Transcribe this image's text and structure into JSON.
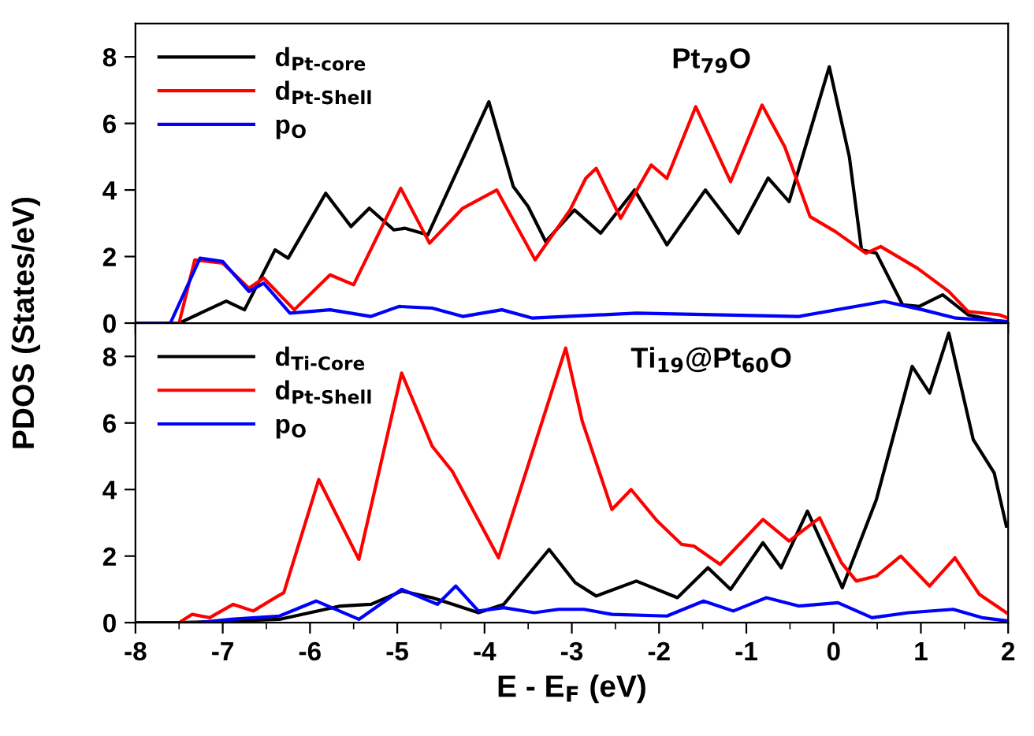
{
  "chart_data": [
    {
      "type": "line",
      "annotations": [
        "Pt$_{79}$O"
      ],
      "xlim": [
        -8,
        2
      ],
      "ylim": [
        0,
        9
      ],
      "xticks": [
        -8,
        -7,
        -6,
        -5,
        -4,
        -3,
        -2,
        -1,
        0,
        1,
        2
      ],
      "yticks": [
        0,
        2,
        4,
        6,
        8
      ],
      "tick_labels": "y",
      "legend": "top left",
      "grid": false,
      "series": [
        {
          "name": "d$_{Pt-core}$",
          "color": "#000000",
          "x": [
            -8,
            -7.5,
            -6.96,
            -6.75,
            -6.4,
            -6.25,
            -5.82,
            -5.53,
            -5.32,
            -5.04,
            -4.91,
            -4.65,
            -3.95,
            -3.67,
            -3.5,
            -3.3,
            -2.97,
            -2.67,
            -2.28,
            -1.91,
            -1.47,
            -1.09,
            -0.75,
            -0.51,
            -0.05,
            0.18,
            0.32,
            0.49,
            0.79,
            0.98,
            1.25,
            1.54,
            2
          ],
          "values": [
            0,
            0,
            0.66,
            0.4,
            2.2,
            1.95,
            3.9,
            2.9,
            3.45,
            2.8,
            2.85,
            2.65,
            6.65,
            4.1,
            3.5,
            2.45,
            3.4,
            2.7,
            4.0,
            2.35,
            4.0,
            2.7,
            4.36,
            3.65,
            7.7,
            5.0,
            2.2,
            2.1,
            0.55,
            0.5,
            0.85,
            0.25,
            0
          ]
        },
        {
          "name": "d$_{Pt-Shell}$",
          "color": "#ff0000",
          "x": [
            -8,
            -7.5,
            -7.32,
            -7.0,
            -6.7,
            -6.53,
            -6.18,
            -5.77,
            -5.5,
            -4.96,
            -4.63,
            -4.25,
            -3.86,
            -3.42,
            -3.02,
            -2.84,
            -2.72,
            -2.44,
            -2.09,
            -1.91,
            -1.58,
            -1.18,
            -0.82,
            -0.56,
            -0.27,
            0.02,
            0.37,
            0.54,
            0.96,
            1.32,
            1.54,
            1.9,
            2
          ],
          "values": [
            0,
            0,
            1.9,
            1.8,
            1.05,
            1.35,
            0.4,
            1.45,
            1.15,
            4.05,
            2.4,
            3.45,
            4.0,
            1.9,
            3.4,
            4.35,
            4.65,
            3.15,
            4.75,
            4.35,
            6.5,
            4.25,
            6.55,
            5.3,
            3.2,
            2.75,
            2.1,
            2.3,
            1.65,
            0.95,
            0.35,
            0.25,
            0.15
          ]
        },
        {
          "name": "p$_{O}$",
          "color": "#0000ff",
          "x": [
            -8,
            -7.6,
            -7.26,
            -7.0,
            -6.7,
            -6.53,
            -6.23,
            -5.77,
            -5.3,
            -4.98,
            -4.6,
            -4.25,
            -3.8,
            -3.45,
            -2.26,
            -0.4,
            0.58,
            1.02,
            1.4,
            2.0
          ],
          "values": [
            0,
            0,
            1.95,
            1.85,
            0.95,
            1.2,
            0.3,
            0.4,
            0.2,
            0.5,
            0.45,
            0.2,
            0.4,
            0.15,
            0.3,
            0.2,
            0.65,
            0.4,
            0.15,
            0.05
          ]
        }
      ]
    },
    {
      "type": "line",
      "annotations": [
        "Ti$_{19}$@Pt$_{60}$O"
      ],
      "xlabel": "E - E$_{F}$ (eV)",
      "ylabel": "PDOS (States/eV)",
      "xlim": [
        -8,
        2
      ],
      "ylim": [
        0,
        9
      ],
      "xticks": [
        -8,
        -7,
        -6,
        -5,
        -4,
        -3,
        -2,
        -1,
        0,
        1,
        2
      ],
      "yticks": [
        0,
        2,
        4,
        6,
        8
      ],
      "legend": "top left",
      "grid": false,
      "series": [
        {
          "name": "d$_{Ti-Core}$",
          "color": "#000000",
          "x": [
            -8,
            -7.5,
            -6.35,
            -5.65,
            -5.3,
            -4.95,
            -4.6,
            -4.36,
            -4.07,
            -3.78,
            -3.26,
            -2.96,
            -2.72,
            -2.26,
            -1.79,
            -1.44,
            -1.18,
            -0.81,
            -0.6,
            -0.3,
            0.1,
            0.49,
            0.9,
            1.1,
            1.32,
            1.6,
            1.84,
            1.98
          ],
          "values": [
            0,
            0,
            0.1,
            0.5,
            0.55,
            0.95,
            0.75,
            0.55,
            0.3,
            0.55,
            2.2,
            1.2,
            0.8,
            1.25,
            0.75,
            1.65,
            1.0,
            2.4,
            1.65,
            3.35,
            1.05,
            3.7,
            7.7,
            6.9,
            8.7,
            5.5,
            4.5,
            2.9
          ]
        },
        {
          "name": "d$_{Pt-Shell}$",
          "color": "#ff0000",
          "x": [
            -8,
            -7.5,
            -7.35,
            -7.15,
            -6.88,
            -6.65,
            -6.4,
            -6.3,
            -5.9,
            -5.44,
            -4.95,
            -4.6,
            -4.37,
            -3.84,
            -3.07,
            -2.88,
            -2.54,
            -2.32,
            -2.02,
            -1.74,
            -1.6,
            -1.3,
            -0.81,
            -0.51,
            -0.16,
            0.09,
            0.26,
            0.49,
            0.77,
            1.1,
            1.39,
            1.67,
            1.98
          ],
          "values": [
            0,
            0,
            0.25,
            0.15,
            0.55,
            0.35,
            0.75,
            0.9,
            4.3,
            1.9,
            7.5,
            5.3,
            4.55,
            1.95,
            8.25,
            6.05,
            3.4,
            4.0,
            3.05,
            2.35,
            2.3,
            1.75,
            3.1,
            2.45,
            3.15,
            1.8,
            1.25,
            1.4,
            2.0,
            1.1,
            1.95,
            0.85,
            0.3
          ]
        },
        {
          "name": "p$_{O}$",
          "color": "#0000ff",
          "x": [
            -8,
            -7.3,
            -6.9,
            -6.35,
            -5.93,
            -5.44,
            -4.95,
            -4.54,
            -4.33,
            -4.07,
            -3.78,
            -3.43,
            -3.15,
            -2.86,
            -2.54,
            -1.91,
            -1.49,
            -1.15,
            -0.77,
            -0.4,
            0.05,
            0.44,
            0.86,
            1.37,
            1.7,
            2.0
          ],
          "values": [
            0,
            0,
            0.1,
            0.2,
            0.65,
            0.1,
            1.0,
            0.55,
            1.1,
            0.35,
            0.45,
            0.3,
            0.4,
            0.4,
            0.25,
            0.2,
            0.65,
            0.35,
            0.75,
            0.5,
            0.6,
            0.15,
            0.3,
            0.4,
            0.15,
            0.05
          ]
        }
      ]
    }
  ]
}
